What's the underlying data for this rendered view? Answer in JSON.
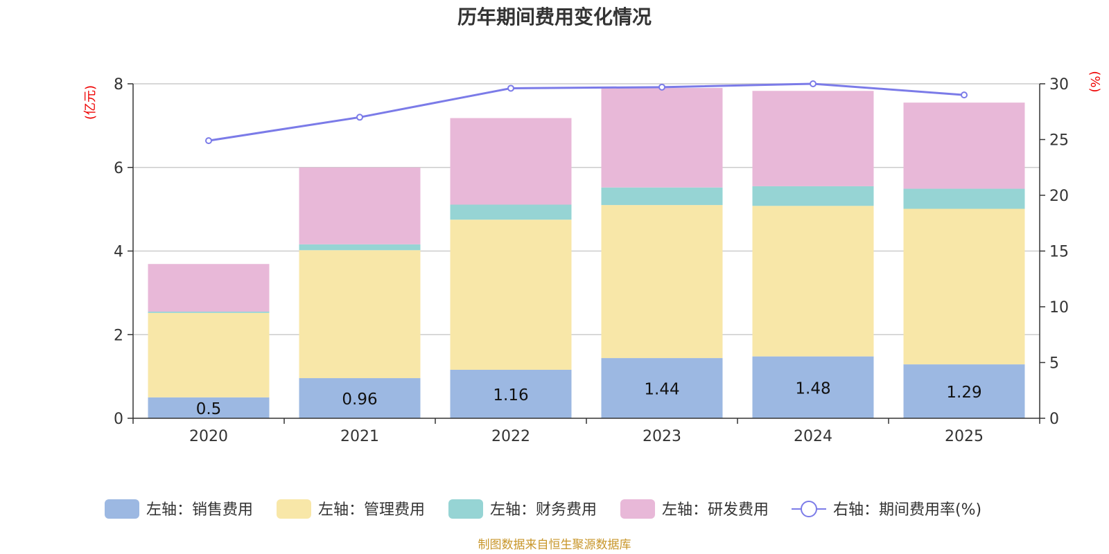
{
  "chart_data": {
    "type": "bar",
    "title": "历年期间费用变化情况",
    "ylabel_left": "(亿元)",
    "ylabel_right": "(%)",
    "categories": [
      "2020",
      "2021",
      "2022",
      "2023",
      "2024",
      "2025"
    ],
    "ylim_left": [
      0,
      8
    ],
    "yticks_left": [
      "0",
      "2",
      "4",
      "6",
      "8"
    ],
    "ylim_right": [
      0,
      30
    ],
    "yticks_right": [
      "0",
      "5",
      "10",
      "15",
      "20",
      "25",
      "30"
    ],
    "series": [
      {
        "name": "左轴：销售费用",
        "type": "bar",
        "color": "#9cb8e2",
        "values": [
          0.5,
          0.96,
          1.16,
          1.44,
          1.48,
          1.29
        ],
        "labels": [
          "0.5",
          "0.96",
          "1.16",
          "1.44",
          "1.48",
          "1.29"
        ]
      },
      {
        "name": "左轴：管理费用",
        "type": "bar",
        "color": "#f8e7a8",
        "values": [
          2.02,
          3.06,
          3.59,
          3.66,
          3.6,
          3.72
        ]
      },
      {
        "name": "左轴：财务费用",
        "type": "bar",
        "color": "#96d4d4",
        "values": [
          0.03,
          0.14,
          0.36,
          0.42,
          0.47,
          0.48
        ]
      },
      {
        "name": "左轴：研发费用",
        "type": "bar",
        "color": "#e8b8d8",
        "values": [
          1.14,
          1.84,
          2.07,
          2.38,
          2.28,
          2.06
        ]
      },
      {
        "name": "右轴：期间费用率(%)",
        "type": "line",
        "color": "#7b7be8",
        "values": [
          24.9,
          27.0,
          29.6,
          29.7,
          30.0,
          29.0
        ]
      }
    ],
    "grid": true,
    "legend_position": "bottom"
  },
  "footer": {
    "source": "制图数据来自恒生聚源数据库"
  }
}
